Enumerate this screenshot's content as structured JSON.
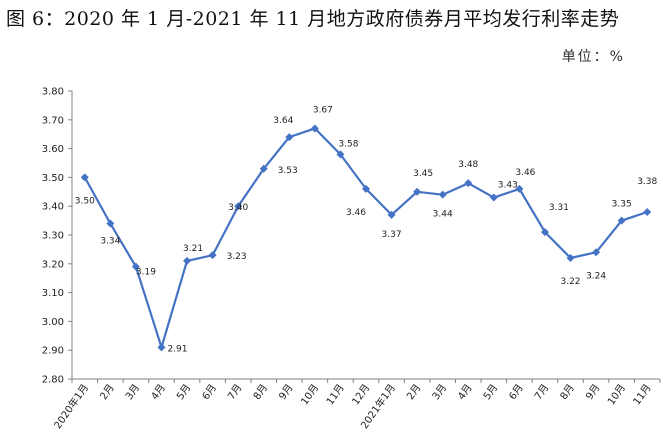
{
  "title": "图 6：2020 年 1 月-2021 年 11 月地方政府债券月平均发行利率走势",
  "unit_label": "单位：%",
  "chart_data": {
    "type": "line",
    "title": "图 6：2020 年 1 月-2021 年 11 月地方政府债券月平均发行利率走势",
    "ylabel": "单位：%",
    "categories": [
      "2020年1月",
      "2月",
      "3月",
      "4月",
      "5月",
      "6月",
      "7月",
      "8月",
      "9月",
      "10月",
      "11月",
      "12月",
      "2021年1月",
      "2月",
      "3月",
      "4月",
      "5月",
      "6月",
      "7月",
      "8月",
      "9月",
      "10月",
      "11月"
    ],
    "values": [
      3.5,
      3.34,
      3.19,
      2.91,
      3.21,
      3.23,
      3.4,
      3.53,
      3.64,
      3.67,
      3.58,
      3.46,
      3.37,
      3.45,
      3.44,
      3.48,
      3.43,
      3.46,
      3.31,
      3.22,
      3.24,
      3.35,
      3.38
    ],
    "data_labels": [
      "3.50",
      "3.34",
      "3.19",
      "2.91",
      "3.21",
      "3.23",
      "3.40",
      "3.53",
      "3.64",
      "3.67",
      "3.58",
      "3.46",
      "3.37",
      "3.45",
      "3.44",
      "3.48",
      "3.43",
      "3.46",
      "3.31",
      "3.22",
      "3.24",
      "3.35",
      "3.38"
    ],
    "ylim": [
      2.8,
      3.8
    ],
    "yticks": [
      "2.80",
      "2.90",
      "3.00",
      "3.10",
      "3.20",
      "3.30",
      "3.40",
      "3.50",
      "3.60",
      "3.70",
      "3.80"
    ],
    "grid": false,
    "legend": "none",
    "line_color": "#4472C4"
  }
}
